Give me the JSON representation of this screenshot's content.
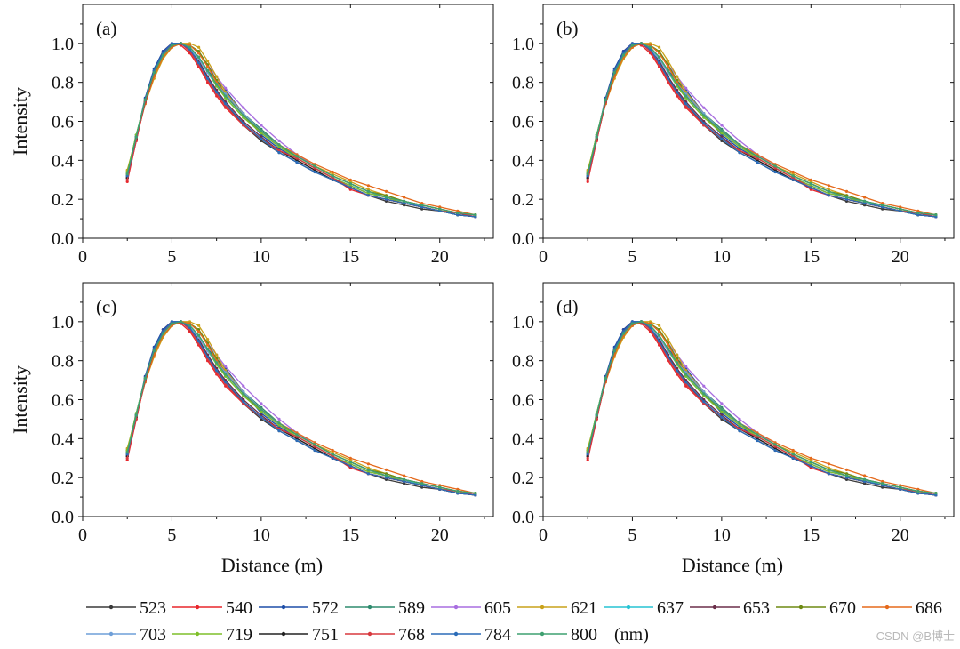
{
  "chart_data": {
    "type": "line",
    "title": "",
    "layout": "2x2 panels with shared legend",
    "xlabel": "Distance (m)",
    "ylabel": "Intensity",
    "xlim": [
      0,
      23
    ],
    "ylim": [
      0,
      1.2
    ],
    "xticks": [
      0,
      5,
      10,
      15,
      20
    ],
    "yticks": [
      0.0,
      0.2,
      0.4,
      0.6,
      0.8,
      1.0
    ],
    "xtick_labels": [
      "0",
      "5",
      "10",
      "15",
      "20"
    ],
    "ytick_labels": [
      "0.0",
      "0.2",
      "0.4",
      "0.6",
      "0.8",
      "1.0"
    ],
    "grid": false,
    "legend_unit": "(nm)",
    "x": [
      2.5,
      3.0,
      3.5,
      4.0,
      4.5,
      5.0,
      5.5,
      6.0,
      6.5,
      7.0,
      7.5,
      8.0,
      9.0,
      10.0,
      11.0,
      12.0,
      13.0,
      14.0,
      15.0,
      16.0,
      17.0,
      18.0,
      19.0,
      20.0,
      21.0,
      22.0
    ],
    "panels": [
      {
        "label": "(a)",
        "show_xlabel": false,
        "show_ylabel": true
      },
      {
        "label": "(b)",
        "show_xlabel": false,
        "show_ylabel": false
      },
      {
        "label": "(c)",
        "show_xlabel": true,
        "show_ylabel": true
      },
      {
        "label": "(d)",
        "show_xlabel": true,
        "show_ylabel": false
      }
    ],
    "series": [
      {
        "name": "523",
        "color": "#3a3a3a",
        "values": [
          0.32,
          0.52,
          0.7,
          0.85,
          0.95,
          0.99,
          1.0,
          0.97,
          0.9,
          0.82,
          0.75,
          0.69,
          0.58,
          0.5,
          0.44,
          0.39,
          0.34,
          0.3,
          0.26,
          0.22,
          0.19,
          0.17,
          0.15,
          0.14,
          0.12,
          0.11
        ]
      },
      {
        "name": "540",
        "color": "#e8262c",
        "values": [
          0.29,
          0.5,
          0.7,
          0.86,
          0.96,
          1.0,
          0.99,
          0.95,
          0.88,
          0.8,
          0.73,
          0.67,
          0.58,
          0.51,
          0.45,
          0.41,
          0.36,
          0.31,
          0.25,
          0.22,
          0.2,
          0.18,
          0.16,
          0.14,
          0.13,
          0.11
        ]
      },
      {
        "name": "572",
        "color": "#1f4fa8",
        "values": [
          0.31,
          0.52,
          0.72,
          0.87,
          0.96,
          1.0,
          1.0,
          0.97,
          0.92,
          0.86,
          0.81,
          0.76,
          0.64,
          0.53,
          0.46,
          0.41,
          0.36,
          0.31,
          0.27,
          0.23,
          0.21,
          0.19,
          0.16,
          0.14,
          0.13,
          0.12
        ]
      },
      {
        "name": "589",
        "color": "#2e8b6e",
        "values": [
          0.34,
          0.53,
          0.71,
          0.85,
          0.94,
          0.99,
          1.0,
          0.98,
          0.93,
          0.86,
          0.79,
          0.73,
          0.64,
          0.56,
          0.48,
          0.42,
          0.37,
          0.32,
          0.28,
          0.24,
          0.21,
          0.19,
          0.17,
          0.15,
          0.13,
          0.12
        ]
      },
      {
        "name": "605",
        "color": "#a86ee0",
        "values": [
          0.33,
          0.52,
          0.7,
          0.84,
          0.94,
          0.99,
          1.0,
          0.99,
          0.95,
          0.89,
          0.83,
          0.77,
          0.67,
          0.58,
          0.5,
          0.43,
          0.37,
          0.32,
          0.28,
          0.24,
          0.21,
          0.19,
          0.17,
          0.15,
          0.13,
          0.12
        ]
      },
      {
        "name": "621",
        "color": "#c9a21a",
        "values": [
          0.35,
          0.52,
          0.69,
          0.82,
          0.92,
          0.98,
          1.0,
          1.0,
          0.98,
          0.91,
          0.83,
          0.75,
          0.64,
          0.55,
          0.48,
          0.42,
          0.37,
          0.33,
          0.29,
          0.25,
          0.22,
          0.19,
          0.17,
          0.15,
          0.13,
          0.12
        ]
      },
      {
        "name": "637",
        "color": "#27c4d4",
        "values": [
          0.33,
          0.53,
          0.71,
          0.86,
          0.95,
          0.99,
          1.0,
          0.97,
          0.92,
          0.85,
          0.78,
          0.72,
          0.62,
          0.54,
          0.47,
          0.41,
          0.36,
          0.31,
          0.27,
          0.23,
          0.21,
          0.19,
          0.16,
          0.14,
          0.13,
          0.11
        ]
      },
      {
        "name": "653",
        "color": "#6b2f4a",
        "values": [
          0.32,
          0.52,
          0.71,
          0.86,
          0.95,
          0.99,
          1.0,
          0.97,
          0.91,
          0.83,
          0.76,
          0.7,
          0.6,
          0.52,
          0.45,
          0.4,
          0.35,
          0.3,
          0.26,
          0.22,
          0.2,
          0.18,
          0.16,
          0.14,
          0.12,
          0.11
        ]
      },
      {
        "name": "670",
        "color": "#6e8a12",
        "values": [
          0.34,
          0.52,
          0.7,
          0.84,
          0.93,
          0.98,
          1.0,
          0.99,
          0.96,
          0.89,
          0.81,
          0.74,
          0.63,
          0.54,
          0.47,
          0.42,
          0.37,
          0.32,
          0.28,
          0.24,
          0.22,
          0.19,
          0.17,
          0.15,
          0.13,
          0.12
        ]
      },
      {
        "name": "686",
        "color": "#e56a1c",
        "values": [
          0.33,
          0.51,
          0.69,
          0.83,
          0.93,
          0.98,
          1.0,
          0.99,
          0.95,
          0.88,
          0.8,
          0.74,
          0.63,
          0.55,
          0.48,
          0.43,
          0.38,
          0.34,
          0.3,
          0.27,
          0.24,
          0.21,
          0.18,
          0.16,
          0.14,
          0.12
        ]
      },
      {
        "name": "703",
        "color": "#6f9fd8",
        "values": [
          0.32,
          0.52,
          0.71,
          0.85,
          0.95,
          0.99,
          1.0,
          0.97,
          0.92,
          0.85,
          0.79,
          0.74,
          0.64,
          0.55,
          0.47,
          0.41,
          0.36,
          0.31,
          0.27,
          0.23,
          0.21,
          0.18,
          0.16,
          0.14,
          0.12,
          0.11
        ]
      },
      {
        "name": "719",
        "color": "#7fbf2a",
        "values": [
          0.34,
          0.53,
          0.71,
          0.85,
          0.94,
          0.99,
          1.0,
          0.98,
          0.93,
          0.86,
          0.78,
          0.72,
          0.62,
          0.54,
          0.47,
          0.41,
          0.36,
          0.31,
          0.27,
          0.23,
          0.21,
          0.18,
          0.16,
          0.14,
          0.13,
          0.12
        ]
      },
      {
        "name": "751",
        "color": "#222222",
        "values": [
          0.31,
          0.51,
          0.7,
          0.85,
          0.95,
          0.99,
          1.0,
          0.96,
          0.9,
          0.82,
          0.75,
          0.69,
          0.59,
          0.51,
          0.45,
          0.4,
          0.35,
          0.3,
          0.26,
          0.22,
          0.2,
          0.18,
          0.16,
          0.14,
          0.12,
          0.11
        ]
      },
      {
        "name": "768",
        "color": "#d8393f",
        "values": [
          0.3,
          0.5,
          0.7,
          0.85,
          0.95,
          0.99,
          1.0,
          0.96,
          0.89,
          0.81,
          0.74,
          0.68,
          0.58,
          0.51,
          0.45,
          0.41,
          0.36,
          0.31,
          0.26,
          0.22,
          0.2,
          0.18,
          0.16,
          0.14,
          0.13,
          0.11
        ]
      },
      {
        "name": "784",
        "color": "#2b6cb8",
        "values": [
          0.32,
          0.52,
          0.71,
          0.86,
          0.95,
          1.0,
          1.0,
          0.97,
          0.9,
          0.82,
          0.75,
          0.69,
          0.59,
          0.51,
          0.44,
          0.39,
          0.34,
          0.3,
          0.26,
          0.22,
          0.2,
          0.18,
          0.16,
          0.14,
          0.12,
          0.11
        ]
      },
      {
        "name": "800",
        "color": "#3fa070",
        "values": [
          0.33,
          0.52,
          0.71,
          0.85,
          0.94,
          0.99,
          1.0,
          0.98,
          0.93,
          0.86,
          0.79,
          0.73,
          0.63,
          0.55,
          0.48,
          0.42,
          0.37,
          0.32,
          0.28,
          0.24,
          0.21,
          0.19,
          0.17,
          0.15,
          0.13,
          0.12
        ]
      }
    ]
  },
  "watermark": "CSDN @B博士"
}
